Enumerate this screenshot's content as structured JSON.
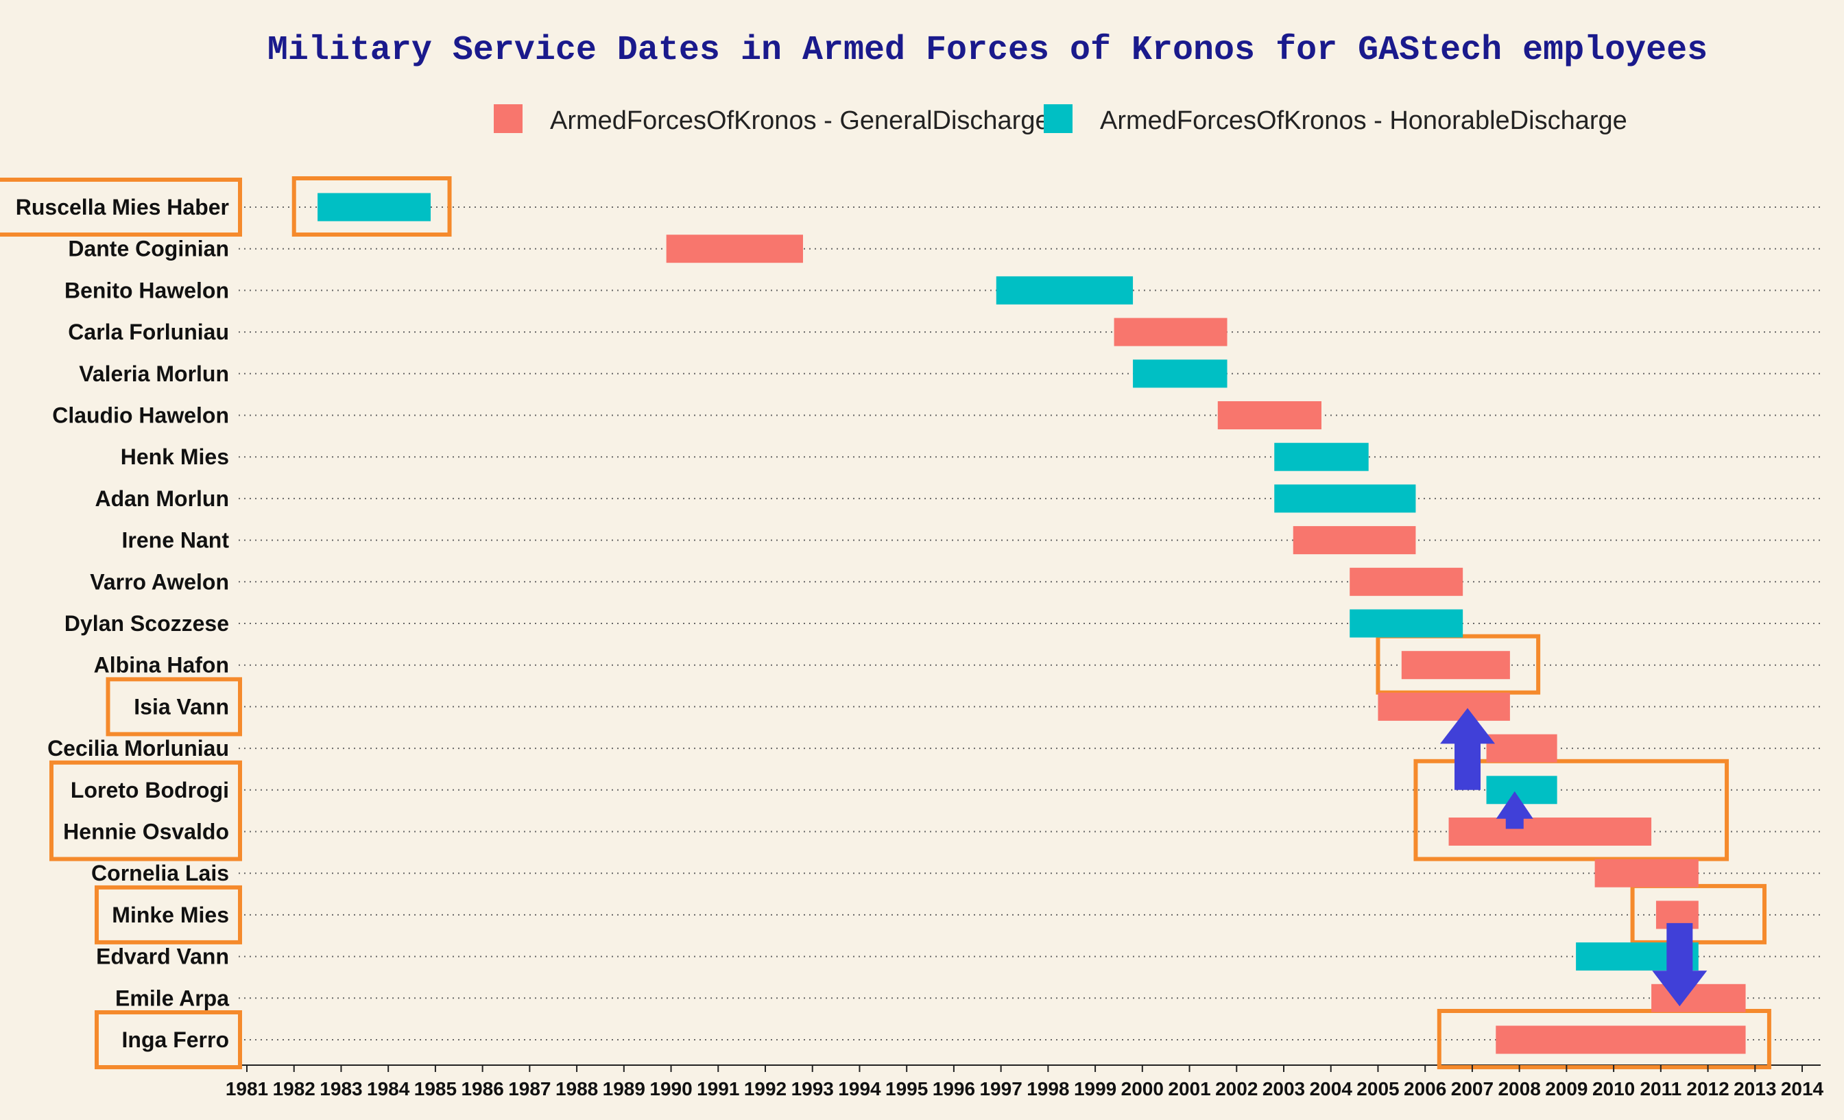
{
  "chart_data": {
    "type": "gantt",
    "title": "Military Service Dates in Armed Forces of Kronos for GAStech employees",
    "legend": [
      {
        "name": "ArmedForcesOfKronos - GeneralDischarge",
        "color": "#f8766d"
      },
      {
        "name": "ArmedForcesOfKronos - HonorableDischarge",
        "color": "#00bfc4"
      }
    ],
    "xlim": [
      1981,
      2014
    ],
    "x_ticks": [
      "1981",
      "1982",
      "1983",
      "1984",
      "1985",
      "1986",
      "1987",
      "1988",
      "1989",
      "1990",
      "1991",
      "1992",
      "1993",
      "1994",
      "1995",
      "1996",
      "1997",
      "1998",
      "1999",
      "2000",
      "2001",
      "2002",
      "2003",
      "2004",
      "2005",
      "2006",
      "2007",
      "2008",
      "2009",
      "2010",
      "2011",
      "2012",
      "2013",
      "2014"
    ],
    "rows": [
      {
        "name": "Ruscella Mies Haber",
        "start": 1982.5,
        "end": 1984.9,
        "discharge": "HonorableDischarge",
        "highlighted": true
      },
      {
        "name": "Dante Coginian",
        "start": 1989.9,
        "end": 1992.8,
        "discharge": "GeneralDischarge",
        "highlighted": false
      },
      {
        "name": "Benito Hawelon",
        "start": 1996.9,
        "end": 1999.8,
        "discharge": "HonorableDischarge",
        "highlighted": false
      },
      {
        "name": "Carla Forluniau",
        "start": 1999.4,
        "end": 2001.8,
        "discharge": "GeneralDischarge",
        "highlighted": false
      },
      {
        "name": "Valeria Morlun",
        "start": 1999.8,
        "end": 2001.8,
        "discharge": "HonorableDischarge",
        "highlighted": false
      },
      {
        "name": "Claudio Hawelon",
        "start": 2001.6,
        "end": 2003.8,
        "discharge": "GeneralDischarge",
        "highlighted": false
      },
      {
        "name": "Henk Mies",
        "start": 2002.8,
        "end": 2004.8,
        "discharge": "HonorableDischarge",
        "highlighted": false
      },
      {
        "name": "Adan Morlun",
        "start": 2002.8,
        "end": 2005.8,
        "discharge": "HonorableDischarge",
        "highlighted": false
      },
      {
        "name": "Irene Nant",
        "start": 2003.2,
        "end": 2005.8,
        "discharge": "GeneralDischarge",
        "highlighted": false
      },
      {
        "name": "Varro Awelon",
        "start": 2004.4,
        "end": 2006.8,
        "discharge": "GeneralDischarge",
        "highlighted": false
      },
      {
        "name": "Dylan Scozzese",
        "start": 2004.4,
        "end": 2006.8,
        "discharge": "HonorableDischarge",
        "highlighted": false
      },
      {
        "name": "Albina Hafon",
        "start": 2005.5,
        "end": 2007.8,
        "discharge": "GeneralDischarge",
        "highlighted": false
      },
      {
        "name": "Isia Vann",
        "start": 2005.0,
        "end": 2007.8,
        "discharge": "GeneralDischarge",
        "highlighted": true
      },
      {
        "name": "Cecilia Morluniau",
        "start": 2007.3,
        "end": 2008.8,
        "discharge": "GeneralDischarge",
        "highlighted": false
      },
      {
        "name": "Loreto Bodrogi",
        "start": 2007.3,
        "end": 2008.8,
        "discharge": "HonorableDischarge",
        "highlighted": true
      },
      {
        "name": "Hennie Osvaldo",
        "start": 2006.5,
        "end": 2010.8,
        "discharge": "GeneralDischarge",
        "highlighted": true
      },
      {
        "name": "Cornelia Lais",
        "start": 2009.6,
        "end": 2011.8,
        "discharge": "GeneralDischarge",
        "highlighted": false
      },
      {
        "name": "Minke Mies",
        "start": 2010.9,
        "end": 2011.8,
        "discharge": "GeneralDischarge",
        "highlighted": true
      },
      {
        "name": "Edvard Vann",
        "start": 2009.2,
        "end": 2011.8,
        "discharge": "HonorableDischarge",
        "highlighted": false
      },
      {
        "name": "Emile Arpa",
        "start": 2010.8,
        "end": 2012.8,
        "discharge": "GeneralDischarge",
        "highlighted": false
      },
      {
        "name": "Inga Ferro",
        "start": 2007.5,
        "end": 2012.8,
        "discharge": "GeneralDischarge",
        "highlighted": true
      }
    ],
    "bar_highlight_groups": [
      {
        "rows": [
          "Ruscella Mies Haber"
        ],
        "x_start": 1982.0,
        "x_end": 1985.3
      },
      {
        "rows": [
          "Albina Hafon"
        ],
        "x_start": 2005.0,
        "x_end": 2008.4
      },
      {
        "rows": [
          "Loreto Bodrogi",
          "Hennie Osvaldo"
        ],
        "x_start": 2005.8,
        "x_end": 2012.4
      },
      {
        "rows": [
          "Minke Mies"
        ],
        "x_start": 2010.4,
        "x_end": 2013.2
      },
      {
        "rows": [
          "Inga Ferro"
        ],
        "x_start": 2006.3,
        "x_end": 2013.3
      }
    ],
    "arrows": [
      {
        "from_row": "Loreto Bodrogi",
        "to_row": "Isia Vann",
        "x": 2006.9,
        "size": "large",
        "direction": "up"
      },
      {
        "from_row": "Hennie Osvaldo",
        "to_row": "Loreto Bodrogi",
        "x": 2007.9,
        "size": "small",
        "direction": "up"
      },
      {
        "from_row": "Minke Mies",
        "to_row": "Emile Arpa",
        "x": 2011.4,
        "size": "large",
        "direction": "down"
      }
    ],
    "grid": "horizontal dotted",
    "legend_position": "top",
    "colors": {
      "highlight_box": "#f58a2c",
      "arrow": "#4040d8",
      "grid": "#666666"
    }
  }
}
